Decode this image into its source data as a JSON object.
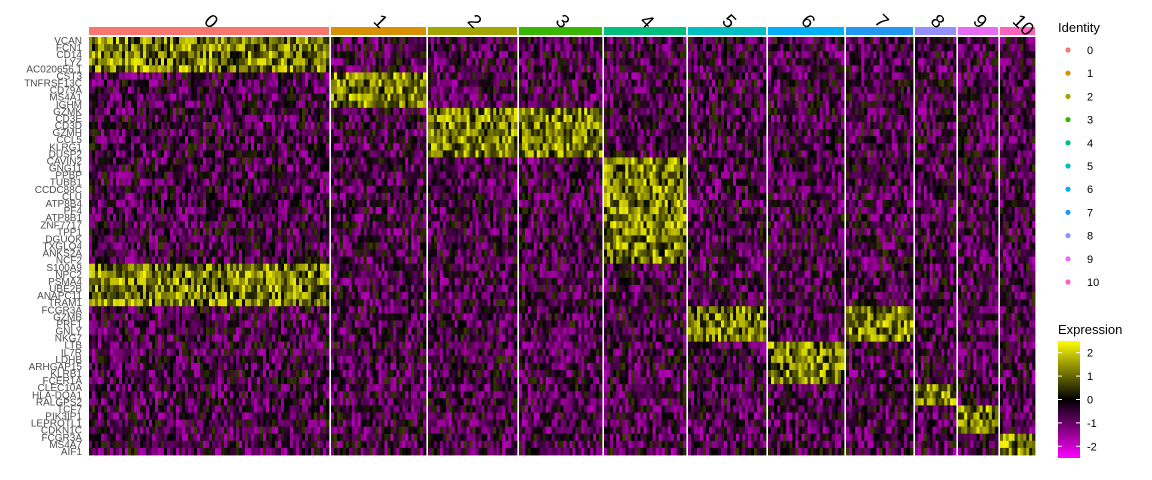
{
  "chart_data": {
    "type": "heatmap",
    "genes": [
      "VCAN",
      "FCN1",
      "CD14",
      "LYZ",
      "AC020656.1",
      "CST3",
      "TNFRSF13C",
      "CD79A",
      "MS4A1",
      "IGHM",
      "GZMK",
      "CD3E",
      "CD3D",
      "GZMH",
      "CCL5",
      "KLRG1",
      "DUSP2",
      "CAVIN2",
      "GNG11",
      "PPBP",
      "TUBB1",
      "CCDC88C",
      "CLU",
      "ATP8B4",
      "PF4",
      "ATP8B1",
      "ZNF7717",
      "TPP1",
      "DGUOK",
      "TXGLQ4",
      "ANKS2A",
      "NCF2",
      "S100A9",
      "NPC2",
      "PSMA4",
      "UBE2B",
      "ANAPC11",
      "TRAM1",
      "FCGR3A",
      "GZMB",
      "PRF1",
      "GNLY",
      "NKG7",
      "LTB",
      "IL7R",
      "LDHB",
      "ARHGAP15",
      "KLRB1",
      "FCER1A",
      "CLEC10A",
      "HLA-DQA1",
      "RALGPS2",
      "TCF7",
      "PIK3IP1",
      "LEPROTL1",
      "CDKN1C",
      "FCGR3A",
      "MS4A7",
      "AIF1"
    ],
    "clusters": [
      {
        "label": "0",
        "color": "#F8766D"
      },
      {
        "label": "1",
        "color": "#D89000"
      },
      {
        "label": "2",
        "color": "#A3A500"
      },
      {
        "label": "3",
        "color": "#39B600"
      },
      {
        "label": "4",
        "color": "#00BF7D"
      },
      {
        "label": "5",
        "color": "#00BFC4"
      },
      {
        "label": "6",
        "color": "#00B0F6"
      },
      {
        "label": "7",
        "color": "#2196F3"
      },
      {
        "label": "8",
        "color": "#9590FF"
      },
      {
        "label": "9",
        "color": "#E76BF3"
      },
      {
        "label": "10",
        "color": "#FF62BC"
      }
    ],
    "legend_identity": {
      "title": "Identity",
      "entries": [
        "0",
        "1",
        "2",
        "3",
        "4",
        "5",
        "6",
        "7",
        "8",
        "9",
        "10"
      ]
    },
    "legend_expression": {
      "title": "Expression",
      "ticks": [
        "2",
        "1",
        "0",
        "-1",
        "-2"
      ],
      "range": [
        -2.5,
        2.5
      ],
      "colors": [
        "#FF00FF",
        "#000000",
        "#FFFF00"
      ]
    }
  }
}
